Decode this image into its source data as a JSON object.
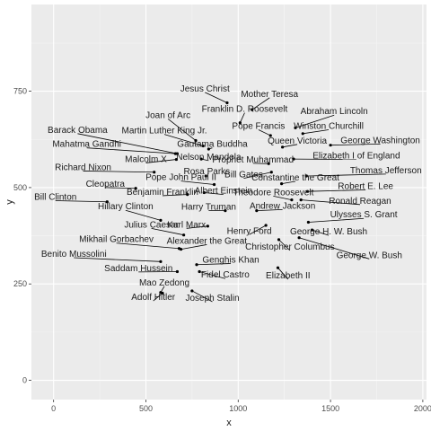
{
  "chart_data": {
    "type": "scatter",
    "title": "",
    "xlabel": "x",
    "ylabel": "y",
    "xlim": [
      -120,
      2020
    ],
    "ylim": [
      -50,
      975
    ],
    "xticks": [
      0,
      500,
      1000,
      1500,
      2000
    ],
    "yticks": [
      0,
      250,
      500,
      750
    ],
    "grid": true,
    "points": [
      {
        "label": "Jesus Christ",
        "x": 940,
        "y": 720,
        "lx": 820,
        "ly": 747
      },
      {
        "label": "Mother Teresa",
        "x": 1075,
        "y": 702,
        "lx": 1170,
        "ly": 733
      },
      {
        "label": "Franklin D. Roosevelt",
        "x": 1010,
        "y": 668,
        "lx": 1035,
        "ly": 694
      },
      {
        "label": "Abraham Lincoln",
        "x": 1310,
        "y": 655,
        "lx": 1520,
        "ly": 688
      },
      {
        "label": "Joan of Arc",
        "x": 770,
        "y": 622,
        "lx": 620,
        "ly": 678
      },
      {
        "label": "Pope Francis",
        "x": 1175,
        "y": 635,
        "lx": 1110,
        "ly": 650
      },
      {
        "label": "Winston Churchill",
        "x": 1350,
        "y": 640,
        "lx": 1490,
        "ly": 650
      },
      {
        "label": "Barack Obama",
        "x": 670,
        "y": 588,
        "lx": 130,
        "ly": 640
      },
      {
        "label": "Martin Luther King Jr.",
        "x": 810,
        "y": 608,
        "lx": 600,
        "ly": 638
      },
      {
        "label": "Queen Victoria",
        "x": 1240,
        "y": 605,
        "lx": 1320,
        "ly": 612
      },
      {
        "label": "George Washington",
        "x": 1500,
        "y": 610,
        "lx": 1770,
        "ly": 613
      },
      {
        "label": "Mahatma Gandhi",
        "x": 660,
        "y": 588,
        "lx": 180,
        "ly": 603
      },
      {
        "label": "Gautama Buddha",
        "x": 840,
        "y": 600,
        "lx": 860,
        "ly": 603
      },
      {
        "label": "Elizabeth I of England",
        "x": 1300,
        "y": 574,
        "lx": 1640,
        "ly": 573
      },
      {
        "label": "Malcolm X",
        "x": 665,
        "y": 573,
        "lx": 500,
        "ly": 564
      },
      {
        "label": "Nelson Mandela",
        "x": 800,
        "y": 574,
        "lx": 840,
        "ly": 570
      },
      {
        "label": "Prophet Muhammad",
        "x": 1165,
        "y": 562,
        "lx": 1080,
        "ly": 563
      },
      {
        "label": "Richard Nixon",
        "x": 545,
        "y": 540,
        "lx": 160,
        "ly": 543
      },
      {
        "label": "Thomas Jefferson",
        "x": 1370,
        "y": 530,
        "lx": 1800,
        "ly": 535
      },
      {
        "label": "Rosa Parks",
        "x": 825,
        "y": 530,
        "lx": 830,
        "ly": 532
      },
      {
        "label": "Bill Gates",
        "x": 1180,
        "y": 540,
        "lx": 1030,
        "ly": 524
      },
      {
        "label": "Pope John Paul II",
        "x": 870,
        "y": 508,
        "lx": 690,
        "ly": 517
      },
      {
        "label": "Constantine the Great",
        "x": 1235,
        "y": 510,
        "lx": 1310,
        "ly": 516
      },
      {
        "label": "Cleopatra",
        "x": 445,
        "y": 498,
        "lx": 280,
        "ly": 500
      },
      {
        "label": "Robert E. Lee",
        "x": 1375,
        "y": 490,
        "lx": 1690,
        "ly": 494
      },
      {
        "label": "Benjamin Franklin",
        "x": 725,
        "y": 482,
        "lx": 590,
        "ly": 479
      },
      {
        "label": "Albert Einstein",
        "x": 815,
        "y": 487,
        "lx": 920,
        "ly": 482
      },
      {
        "label": "Theodore Roosevelt",
        "x": 1290,
        "y": 468,
        "lx": 1190,
        "ly": 478
      },
      {
        "label": "Bill Clinton",
        "x": 290,
        "y": 463,
        "lx": 10,
        "ly": 466
      },
      {
        "label": "Ronald Reagan",
        "x": 1340,
        "y": 468,
        "lx": 1660,
        "ly": 456
      },
      {
        "label": "Hillary Clinton",
        "x": 580,
        "y": 415,
        "lx": 390,
        "ly": 441
      },
      {
        "label": "Harry Truman",
        "x": 930,
        "y": 440,
        "lx": 840,
        "ly": 440
      },
      {
        "label": "Andrew Jackson",
        "x": 1100,
        "y": 440,
        "lx": 1240,
        "ly": 443
      },
      {
        "label": "Ulysses S. Grant",
        "x": 1380,
        "y": 410,
        "lx": 1680,
        "ly": 420
      },
      {
        "label": "Julius Caesar",
        "x": 705,
        "y": 377,
        "lx": 530,
        "ly": 394
      },
      {
        "label": "Karl Marx",
        "x": 835,
        "y": 400,
        "lx": 720,
        "ly": 394
      },
      {
        "label": "Henry Ford",
        "x": 1150,
        "y": 402,
        "lx": 1060,
        "ly": 378
      },
      {
        "label": "George H. W. Bush",
        "x": 1400,
        "y": 390,
        "lx": 1490,
        "ly": 376
      },
      {
        "label": "Mikhail Gorbachev",
        "x": 680,
        "y": 342,
        "lx": 340,
        "ly": 356
      },
      {
        "label": "Alexander the Great",
        "x": 690,
        "y": 340,
        "lx": 830,
        "ly": 352
      },
      {
        "label": "Christopher Columbus",
        "x": 1220,
        "y": 365,
        "lx": 1280,
        "ly": 337
      },
      {
        "label": "George W. Bush",
        "x": 1330,
        "y": 370,
        "lx": 1710,
        "ly": 315
      },
      {
        "label": "Benito Mussolini",
        "x": 580,
        "y": 308,
        "lx": 110,
        "ly": 318
      },
      {
        "label": "Genghis Khan",
        "x": 775,
        "y": 300,
        "lx": 960,
        "ly": 303
      },
      {
        "label": "Saddam Hussein",
        "x": 670,
        "y": 282,
        "lx": 460,
        "ly": 281
      },
      {
        "label": "Elizabeth II",
        "x": 1215,
        "y": 292,
        "lx": 1270,
        "ly": 262
      },
      {
        "label": "Fidel Castro",
        "x": 790,
        "y": 282,
        "lx": 930,
        "ly": 264
      },
      {
        "label": "Mao Zedong",
        "x": 580,
        "y": 228,
        "lx": 600,
        "ly": 244
      },
      {
        "label": "Joseph Stalin",
        "x": 750,
        "y": 232,
        "lx": 860,
        "ly": 204
      },
      {
        "label": "Adolf Hitler",
        "x": 590,
        "y": 226,
        "lx": 540,
        "ly": 206
      }
    ]
  }
}
